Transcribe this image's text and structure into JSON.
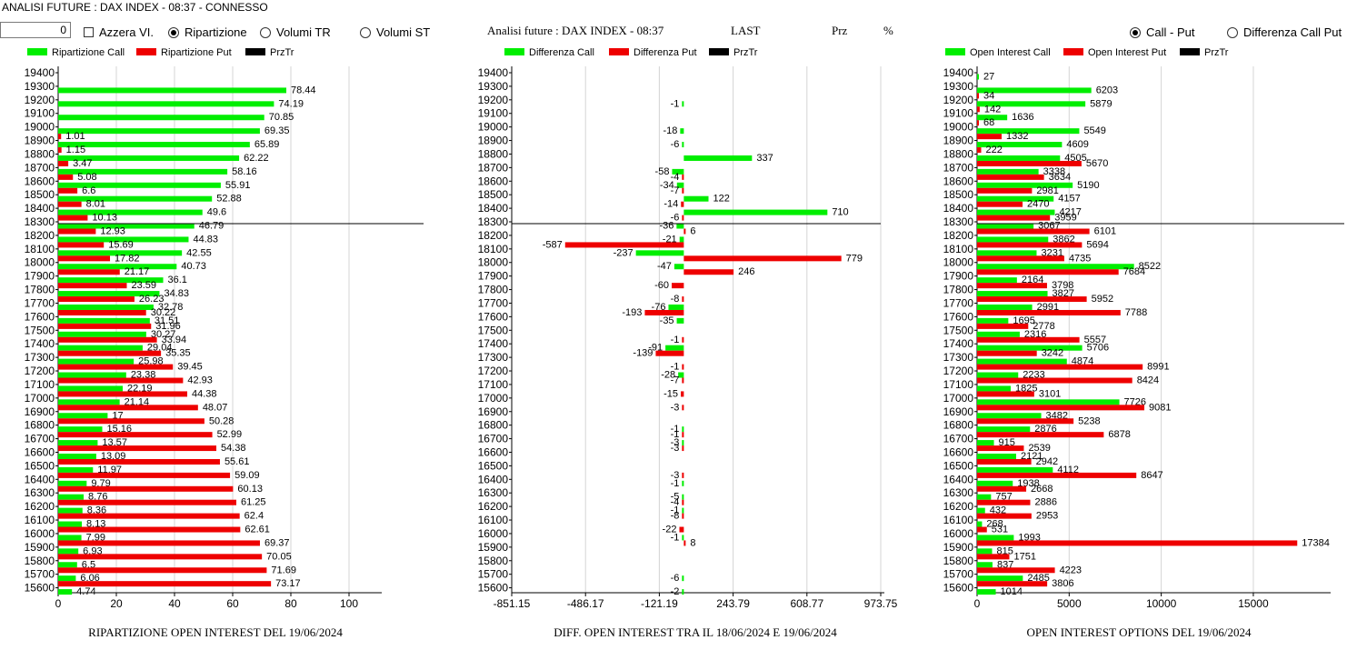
{
  "window_title": "ANALISI FUTURE : DAX INDEX - 08:37 - CONNESSO",
  "controls": {
    "number_value": "0",
    "azzera_label": "Azzera VI.",
    "ripartizione_label": "Ripartizione",
    "volumi_tr_label": "Volumi TR",
    "volumi_st_label": "Volumi ST",
    "callput_label": "Call - Put",
    "diffcall_label": "Differenza Call Put"
  },
  "center_header": {
    "title": "Analisi future : DAX INDEX - 08:37",
    "last": "LAST",
    "prz": "Prz",
    "pct": "%"
  },
  "colors": {
    "call": "#00ee00",
    "put": "#ee0000",
    "przTr": "#000000",
    "grid": "#d4d4d4"
  },
  "chart_data": [
    {
      "type": "bar",
      "title": "RIPARTIZIONE OPEN INTEREST DEL 19/06/2024",
      "legend": [
        "Ripartizione Call",
        "Ripartizione Put",
        "PrzTr"
      ],
      "categories": [
        "19400",
        "19300",
        "19200",
        "19100",
        "19000",
        "18900",
        "18800",
        "18700",
        "18600",
        "18500",
        "18400",
        "18300",
        "18200",
        "18100",
        "18000",
        "17900",
        "17800",
        "17700",
        "17600",
        "17500",
        "17400",
        "17300",
        "17200",
        "17100",
        "17000",
        "16900",
        "16800",
        "16700",
        "16600",
        "16500",
        "16400",
        "16300",
        "16200",
        "16100",
        "16000",
        "15900",
        "15800",
        "15700",
        "15600"
      ],
      "series": [
        {
          "name": "Ripartizione Call",
          "values": [
            null,
            78.44,
            74.19,
            70.85,
            69.35,
            65.89,
            62.22,
            58.16,
            55.91,
            52.88,
            49.6,
            46.79,
            44.83,
            42.55,
            40.73,
            36.1,
            34.83,
            32.78,
            31.51,
            30.27,
            29.04,
            25.98,
            23.38,
            22.19,
            21.14,
            17,
            15.16,
            13.57,
            13.09,
            11.97,
            9.79,
            8.76,
            8.36,
            8.13,
            7.99,
            6.93,
            6.5,
            6.06,
            4.74
          ]
        },
        {
          "name": "Ripartizione Put",
          "values": [
            null,
            null,
            null,
            null,
            1.01,
            1.15,
            3.47,
            5.08,
            6.6,
            8.01,
            10.13,
            12.93,
            15.69,
            17.82,
            21.17,
            23.59,
            26.23,
            30.22,
            31.96,
            33.94,
            35.35,
            39.45,
            42.93,
            44.38,
            48.07,
            50.28,
            52.99,
            54.38,
            55.61,
            59.09,
            60.13,
            61.25,
            62.4,
            62.61,
            69.37,
            70.05,
            71.69,
            73.17,
            null
          ]
        }
      ],
      "prz_tr_level": "18300",
      "xticks": [
        "0",
        "20",
        "40",
        "60",
        "80",
        "100"
      ],
      "xlim": [
        0,
        110
      ]
    },
    {
      "type": "bar",
      "title": "DIFF. OPEN INTEREST TRA IL 18/06/2024 E 19/06/2024",
      "legend": [
        "Differenza Call",
        "Differenza Put",
        "PrzTr"
      ],
      "categories": [
        "19400",
        "19300",
        "19200",
        "19100",
        "19000",
        "18900",
        "18800",
        "18700",
        "18600",
        "18500",
        "18400",
        "18300",
        "18200",
        "18100",
        "18000",
        "17900",
        "17800",
        "17700",
        "17600",
        "17500",
        "17400",
        "17300",
        "17200",
        "17100",
        "17000",
        "16900",
        "16800",
        "16700",
        "16600",
        "16500",
        "16400",
        "16300",
        "16200",
        "16100",
        "16000",
        "15900",
        "15800",
        "15700",
        "15600"
      ],
      "series": [
        {
          "name": "Differenza Call",
          "values": [
            null,
            null,
            -1,
            null,
            -18,
            -6,
            337,
            -58,
            -34,
            122,
            710,
            -36,
            -21,
            -237,
            -47,
            null,
            null,
            -76,
            -35,
            null,
            -91,
            null,
            -28,
            null,
            null,
            null,
            -1,
            -3,
            null,
            null,
            -1,
            -5,
            -1,
            null,
            -1,
            null,
            null,
            -6,
            -2
          ]
        },
        {
          "name": "Differenza Put",
          "values": [
            null,
            null,
            null,
            null,
            null,
            null,
            null,
            -4,
            -7,
            -14,
            -6,
            6,
            -587,
            779,
            246,
            -60,
            -8,
            -193,
            null,
            -1,
            -139,
            -1,
            -7,
            -15,
            -3,
            null,
            -1,
            -3,
            null,
            -3,
            null,
            -4,
            -8,
            -22,
            8,
            null,
            null,
            null,
            null
          ]
        }
      ],
      "prz_tr_level": "18300",
      "xticks": [
        "-851.15",
        "-486.17",
        "-121.19",
        "243.79",
        "608.77",
        "973.75"
      ],
      "xlim": [
        -851.15,
        973.75
      ]
    },
    {
      "type": "bar",
      "title": "OPEN INTEREST OPTIONS DEL 19/06/2024",
      "legend": [
        "Open Interest Call",
        "Open Interest Put",
        "PrzTr"
      ],
      "categories": [
        "19400",
        "19300",
        "19200",
        "19100",
        "19000",
        "18900",
        "18800",
        "18700",
        "18600",
        "18500",
        "18400",
        "18300",
        "18200",
        "18100",
        "18000",
        "17900",
        "17800",
        "17700",
        "17600",
        "17500",
        "17400",
        "17300",
        "17200",
        "17100",
        "17000",
        "16900",
        "16800",
        "16700",
        "16600",
        "16500",
        "16400",
        "16300",
        "16200",
        "16100",
        "16000",
        "15900",
        "15800",
        "15700",
        "15600"
      ],
      "series": [
        {
          "name": "Open Interest Call",
          "values": [
            27,
            6203,
            5879,
            1636,
            5549,
            4609,
            4505,
            3338,
            5190,
            4157,
            4217,
            3067,
            3862,
            3231,
            8522,
            2164,
            3827,
            2991,
            1695,
            2316,
            5706,
            4874,
            2233,
            1825,
            7726,
            3482,
            2876,
            915,
            2121,
            4112,
            1938,
            757,
            432,
            268,
            1993,
            815,
            837,
            2485,
            1014
          ]
        },
        {
          "name": "Open Interest Put",
          "values": [
            null,
            34,
            142,
            68,
            1332,
            222,
            5670,
            3634,
            2981,
            2470,
            3959,
            6101,
            5694,
            4735,
            7684,
            3798,
            5952,
            7788,
            2778,
            5557,
            3242,
            8991,
            8424,
            3101,
            9081,
            5238,
            6878,
            2539,
            2942,
            8647,
            2668,
            2886,
            2953,
            531,
            17384,
            1751,
            4223,
            3806,
            null
          ]
        }
      ],
      "prz_tr_level": "18300",
      "xticks": [
        "0",
        "5000",
        "10000",
        "15000"
      ],
      "xlim": [
        0,
        19000
      ]
    }
  ]
}
